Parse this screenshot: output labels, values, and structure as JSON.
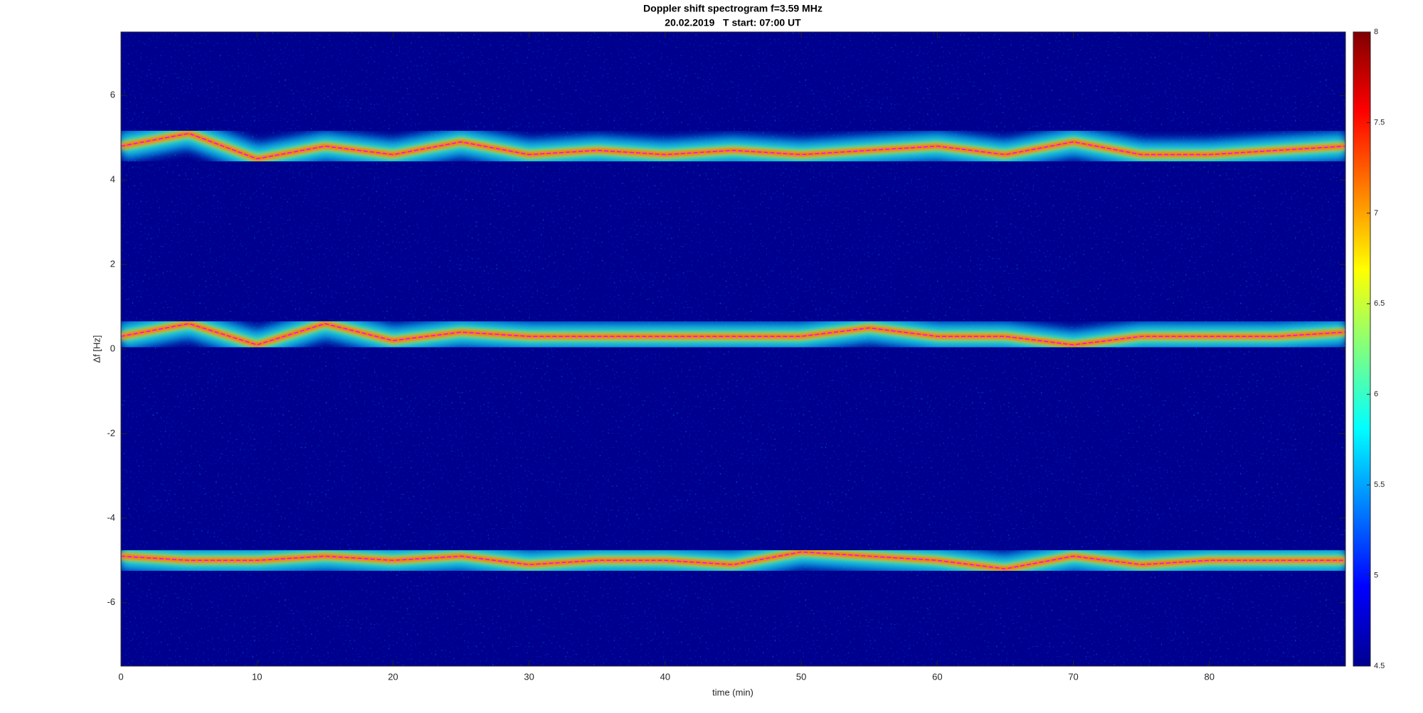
{
  "chart_data": {
    "type": "spectrogram",
    "title": "Doppler shift spectrogram f=3.59 MHz",
    "subtitle": "20.02.2019   T start: 07:00 UT",
    "xlabel": "time (min)",
    "ylabel": "Δf [Hz]",
    "xlim": [
      0,
      90
    ],
    "ylim": [
      -7.5,
      7.5
    ],
    "xticks": [
      0,
      10,
      20,
      30,
      40,
      50,
      60,
      70,
      80
    ],
    "yticks": [
      -6,
      -4,
      -2,
      0,
      2,
      4,
      6
    ],
    "clim": [
      4.5,
      8
    ],
    "cticks": [
      4.5,
      5,
      5.5,
      6,
      6.5,
      7,
      7.5,
      8
    ],
    "x": [
      0,
      5,
      10,
      15,
      20,
      25,
      30,
      35,
      40,
      45,
      50,
      55,
      60,
      65,
      70,
      75,
      80,
      85,
      90
    ],
    "series": [
      {
        "color": "#ff00ff",
        "values": [
          4.8,
          5.1,
          4.5,
          4.8,
          4.6,
          4.9,
          4.6,
          4.7,
          4.6,
          4.7,
          4.6,
          4.7,
          4.8,
          4.6,
          4.9,
          4.6,
          4.6,
          4.7,
          4.8
        ]
      },
      {
        "color": "#ff00ff",
        "values": [
          0.3,
          0.6,
          0.1,
          0.6,
          0.2,
          0.4,
          0.3,
          0.3,
          0.3,
          0.3,
          0.3,
          0.5,
          0.3,
          0.3,
          0.1,
          0.3,
          0.3,
          0.3,
          0.4
        ]
      },
      {
        "color": "#ff00ff",
        "values": [
          -4.9,
          -5.0,
          -5.0,
          -4.9,
          -5.0,
          -4.9,
          -5.1,
          -5.0,
          -5.0,
          -5.1,
          -4.8,
          -4.9,
          -5.0,
          -5.2,
          -4.9,
          -5.1,
          -5.0,
          -5.0,
          -5.0
        ]
      }
    ]
  }
}
